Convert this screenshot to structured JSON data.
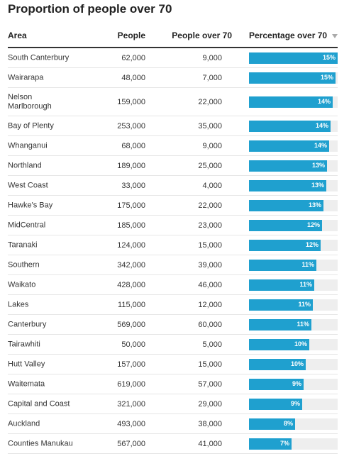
{
  "title": "Proportion of people over 70",
  "columns": {
    "area": "Area",
    "people": "People",
    "over70": "People over 70",
    "pct": "Percentage over 70"
  },
  "colors": {
    "bar": "#1fa0cf",
    "track": "#eeeeee"
  },
  "rows": [
    {
      "area": "South Canterbury",
      "people": "62,000",
      "over70": "9,000",
      "pct_label": "15%",
      "fraction": 1.0
    },
    {
      "area": "Wairarapa",
      "people": "48,000",
      "over70": "7,000",
      "pct_label": "15%",
      "fraction": 0.976
    },
    {
      "area": "Nelson Marlborough",
      "people": "159,000",
      "over70": "22,000",
      "pct_label": "14%",
      "fraction": 0.944
    },
    {
      "area": "Bay of Plenty",
      "people": "253,000",
      "over70": "35,000",
      "pct_label": "14%",
      "fraction": 0.92
    },
    {
      "area": "Whanganui",
      "people": "68,000",
      "over70": "9,000",
      "pct_label": "14%",
      "fraction": 0.904
    },
    {
      "area": "Northland",
      "people": "189,000",
      "over70": "25,000",
      "pct_label": "13%",
      "fraction": 0.88
    },
    {
      "area": "West Coast",
      "people": "33,000",
      "over70": "4,000",
      "pct_label": "13%",
      "fraction": 0.872
    },
    {
      "area": "Hawke's Bay",
      "people": "175,000",
      "over70": "22,000",
      "pct_label": "13%",
      "fraction": 0.84
    },
    {
      "area": "MidCentral",
      "people": "185,000",
      "over70": "23,000",
      "pct_label": "12%",
      "fraction": 0.824
    },
    {
      "area": "Taranaki",
      "people": "124,000",
      "over70": "15,000",
      "pct_label": "12%",
      "fraction": 0.808
    },
    {
      "area": "Southern",
      "people": "342,000",
      "over70": "39,000",
      "pct_label": "11%",
      "fraction": 0.76
    },
    {
      "area": "Waikato",
      "people": "428,000",
      "over70": "46,000",
      "pct_label": "11%",
      "fraction": 0.736
    },
    {
      "area": "Lakes",
      "people": "115,000",
      "over70": "12,000",
      "pct_label": "11%",
      "fraction": 0.72
    },
    {
      "area": "Canterbury",
      "people": "569,000",
      "over70": "60,000",
      "pct_label": "11%",
      "fraction": 0.704
    },
    {
      "area": "Tairawhiti",
      "people": "50,000",
      "over70": "5,000",
      "pct_label": "10%",
      "fraction": 0.68
    },
    {
      "area": "Hutt Valley",
      "people": "157,000",
      "over70": "15,000",
      "pct_label": "10%",
      "fraction": 0.64
    },
    {
      "area": "Waitemata",
      "people": "619,000",
      "over70": "57,000",
      "pct_label": "9%",
      "fraction": 0.616
    },
    {
      "area": "Capital and Coast",
      "people": "321,000",
      "over70": "29,000",
      "pct_label": "9%",
      "fraction": 0.6
    },
    {
      "area": "Auckland",
      "people": "493,000",
      "over70": "38,000",
      "pct_label": "8%",
      "fraction": 0.52
    },
    {
      "area": "Counties Manukau",
      "people": "567,000",
      "over70": "41,000",
      "pct_label": "7%",
      "fraction": 0.48
    }
  ]
}
